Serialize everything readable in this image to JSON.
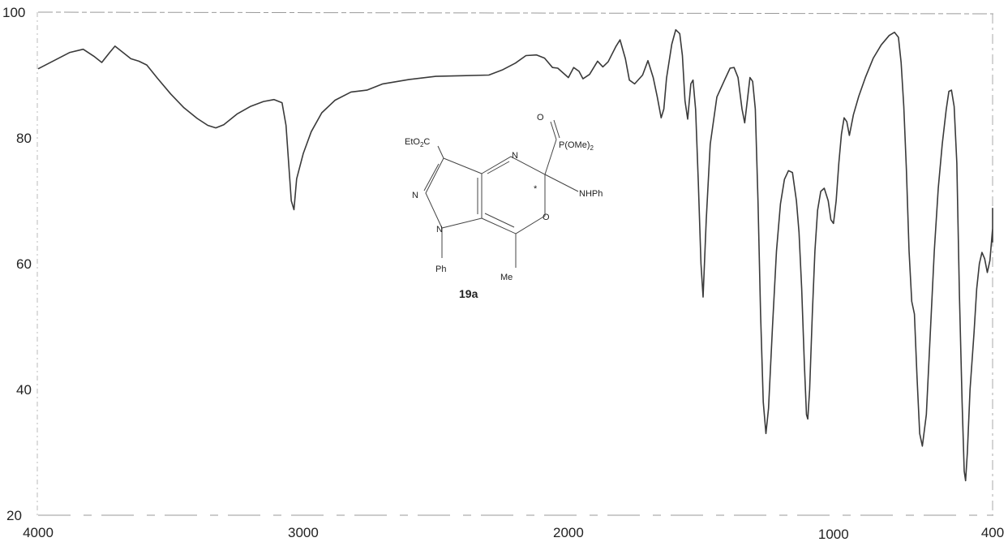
{
  "chart_data": {
    "type": "line",
    "title": "",
    "xlabel": "",
    "ylabel": "",
    "x_reversed": true,
    "xlim": [
      4000,
      400
    ],
    "ylim": [
      20,
      100
    ],
    "grid": false,
    "x_ticks": [
      "4000",
      "3000",
      "2000",
      "1000",
      "400"
    ],
    "y_ticks": [
      "100",
      "80",
      "60",
      "40",
      "20"
    ],
    "x_tick_values": [
      4000,
      3000,
      2000,
      1000,
      400
    ],
    "y_tick_values": [
      100,
      80,
      60,
      40,
      20
    ],
    "series": [
      {
        "name": "",
        "points": [
          [
            4000,
            91.0
          ],
          [
            3940,
            92.3
          ],
          [
            3880,
            93.6
          ],
          [
            3830,
            94.1
          ],
          [
            3790,
            93.0
          ],
          [
            3760,
            92.0
          ],
          [
            3730,
            93.6
          ],
          [
            3710,
            94.6
          ],
          [
            3680,
            93.6
          ],
          [
            3650,
            92.6
          ],
          [
            3620,
            92.2
          ],
          [
            3590,
            91.6
          ],
          [
            3550,
            89.5
          ],
          [
            3500,
            87.0
          ],
          [
            3450,
            84.8
          ],
          [
            3400,
            83.1
          ],
          [
            3360,
            82.0
          ],
          [
            3330,
            81.6
          ],
          [
            3300,
            82.1
          ],
          [
            3250,
            83.8
          ],
          [
            3200,
            85.0
          ],
          [
            3150,
            85.8
          ],
          [
            3110,
            86.1
          ],
          [
            3080,
            85.6
          ],
          [
            3065,
            82.0
          ],
          [
            3045,
            70.0
          ],
          [
            3035,
            68.6
          ],
          [
            3025,
            73.5
          ],
          [
            3000,
            77.5
          ],
          [
            2970,
            81.0
          ],
          [
            2930,
            84.0
          ],
          [
            2880,
            86.0
          ],
          [
            2820,
            87.3
          ],
          [
            2760,
            87.6
          ],
          [
            2700,
            88.6
          ],
          [
            2600,
            89.3
          ],
          [
            2500,
            89.8
          ],
          [
            2400,
            89.9
          ],
          [
            2300,
            90.0
          ],
          [
            2250,
            90.8
          ],
          [
            2200,
            91.9
          ],
          [
            2160,
            93.1
          ],
          [
            2120,
            93.2
          ],
          [
            2090,
            92.7
          ],
          [
            2060,
            91.2
          ],
          [
            2040,
            91.1
          ],
          [
            2000,
            89.6
          ],
          [
            1980,
            91.2
          ],
          [
            1960,
            90.6
          ],
          [
            1945,
            89.4
          ],
          [
            1920,
            90.1
          ],
          [
            1890,
            92.2
          ],
          [
            1870,
            91.3
          ],
          [
            1850,
            92.1
          ],
          [
            1820,
            94.6
          ],
          [
            1805,
            95.6
          ],
          [
            1785,
            92.6
          ],
          [
            1770,
            89.2
          ],
          [
            1750,
            88.6
          ],
          [
            1720,
            90.0
          ],
          [
            1700,
            92.3
          ],
          [
            1680,
            89.6
          ],
          [
            1665,
            86.6
          ],
          [
            1650,
            83.2
          ],
          [
            1640,
            84.6
          ],
          [
            1630,
            89.5
          ],
          [
            1610,
            94.9
          ],
          [
            1595,
            97.2
          ],
          [
            1580,
            96.6
          ],
          [
            1570,
            93.1
          ],
          [
            1560,
            85.9
          ],
          [
            1550,
            83.0
          ],
          [
            1538,
            88.6
          ],
          [
            1530,
            89.2
          ],
          [
            1520,
            84.5
          ],
          [
            1510,
            73.0
          ],
          [
            1500,
            60.0
          ],
          [
            1492,
            54.7
          ],
          [
            1480,
            67.0
          ],
          [
            1465,
            79.0
          ],
          [
            1440,
            86.5
          ],
          [
            1410,
            89.3
          ],
          [
            1390,
            91.1
          ],
          [
            1375,
            91.2
          ],
          [
            1360,
            89.6
          ],
          [
            1345,
            84.6
          ],
          [
            1335,
            82.4
          ],
          [
            1325,
            86.0
          ],
          [
            1315,
            89.6
          ],
          [
            1305,
            89.0
          ],
          [
            1295,
            84.6
          ],
          [
            1285,
            70.0
          ],
          [
            1275,
            52.0
          ],
          [
            1265,
            38.0
          ],
          [
            1255,
            33.0
          ],
          [
            1245,
            37.0
          ],
          [
            1230,
            50.0
          ],
          [
            1215,
            62.0
          ],
          [
            1200,
            69.5
          ],
          [
            1185,
            73.4
          ],
          [
            1170,
            74.8
          ],
          [
            1155,
            74.5
          ],
          [
            1140,
            70.0
          ],
          [
            1130,
            65.0
          ],
          [
            1120,
            56.0
          ],
          [
            1110,
            44.0
          ],
          [
            1102,
            36.0
          ],
          [
            1097,
            35.3
          ],
          [
            1090,
            40.0
          ],
          [
            1080,
            52.0
          ],
          [
            1070,
            62.0
          ],
          [
            1060,
            68.5
          ],
          [
            1048,
            71.5
          ],
          [
            1035,
            72.0
          ],
          [
            1020,
            70.0
          ],
          [
            1010,
            67.0
          ],
          [
            1000,
            66.4
          ],
          [
            990,
            70.0
          ],
          [
            980,
            76.0
          ],
          [
            970,
            80.6
          ],
          [
            960,
            83.2
          ],
          [
            950,
            82.6
          ],
          [
            940,
            80.4
          ],
          [
            925,
            83.7
          ],
          [
            905,
            86.6
          ],
          [
            880,
            89.6
          ],
          [
            850,
            92.7
          ],
          [
            820,
            94.8
          ],
          [
            790,
            96.3
          ],
          [
            770,
            96.8
          ],
          [
            755,
            96.0
          ],
          [
            745,
            92.0
          ],
          [
            735,
            85.0
          ],
          [
            725,
            75.0
          ],
          [
            715,
            62.0
          ],
          [
            705,
            54.0
          ],
          [
            695,
            52.0
          ],
          [
            685,
            42.0
          ],
          [
            675,
            33.0
          ],
          [
            665,
            31.0
          ],
          [
            650,
            36.0
          ],
          [
            635,
            49.0
          ],
          [
            620,
            62.0
          ],
          [
            605,
            72.0
          ],
          [
            590,
            79.0
          ],
          [
            575,
            84.5
          ],
          [
            565,
            87.4
          ],
          [
            555,
            87.6
          ],
          [
            545,
            85.0
          ],
          [
            535,
            76.0
          ],
          [
            525,
            55.0
          ],
          [
            515,
            38.0
          ],
          [
            507,
            27.0
          ],
          [
            502,
            25.5
          ],
          [
            495,
            30.0
          ],
          [
            485,
            40.0
          ],
          [
            470,
            49.0
          ],
          [
            460,
            56.0
          ],
          [
            450,
            60.0
          ],
          [
            440,
            61.8
          ],
          [
            430,
            60.8
          ],
          [
            420,
            58.6
          ],
          [
            410,
            60.5
          ],
          [
            400,
            65.6
          ],
          [
            390,
            68.8
          ],
          [
            380,
            68.5
          ],
          [
            370,
            66.5
          ],
          [
            360,
            63.4
          ]
        ]
      }
    ],
    "annotations": {
      "compound_label": "19a",
      "substituents": {
        "ester_a": "EtO",
        "ester_sub": "2",
        "ester_b": "C",
        "ring_n_top": "N",
        "pyrazole_n": "N",
        "pyrazole_n1": "N",
        "phosphoryl_o": "O",
        "phosphonate_a": "P(OMe)",
        "phosphonate_sub": "2",
        "nhph": "NHPh",
        "ring_o": "O",
        "ph": "Ph",
        "me": "Me",
        "stereo": "*"
      }
    },
    "line_color": "#3a3a3a"
  }
}
